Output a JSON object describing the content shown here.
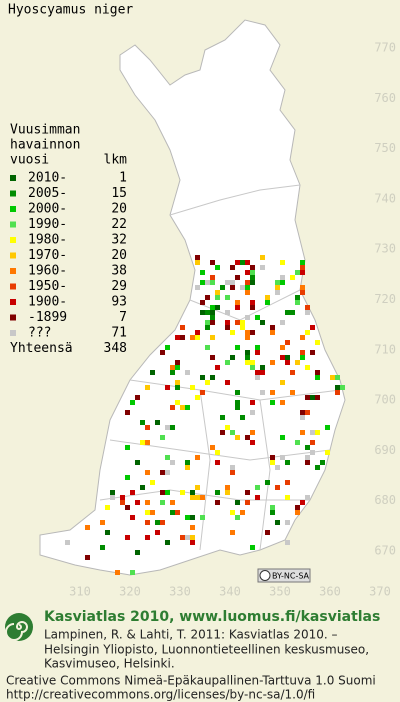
{
  "title": "Hyoscyamus niger",
  "legend": {
    "heading": [
      "Vuusimman",
      "havainnon"
    ],
    "year_label": "vuosi",
    "count_label": "lkm",
    "rows": [
      {
        "label": "2010-",
        "count": 1,
        "color": "#006400"
      },
      {
        "label": "2005-",
        "count": 15,
        "color": "#008c00"
      },
      {
        "label": "2000-",
        "count": 20,
        "color": "#00c800"
      },
      {
        "label": "1990-",
        "count": 22,
        "color": "#50e050"
      },
      {
        "label": "1980-",
        "count": 32,
        "color": "#ffff00"
      },
      {
        "label": "1970-",
        "count": 20,
        "color": "#ffc800"
      },
      {
        "label": "1960-",
        "count": 38,
        "color": "#ff7800"
      },
      {
        "label": "1950-",
        "count": 29,
        "color": "#e83c00"
      },
      {
        "label": "1900-",
        "count": 93,
        "color": "#c80000"
      },
      {
        "label": "-1899",
        "count": 7,
        "color": "#800000"
      },
      {
        "label": "???",
        "count": 71,
        "color": "#c8c8c8"
      }
    ],
    "total_label": "Yhteensä",
    "total": 348
  },
  "grid_y": [
    770,
    760,
    750,
    740,
    730,
    720,
    710,
    700,
    690,
    680,
    670
  ],
  "grid_x": [
    310,
    320,
    330,
    340,
    350,
    360,
    370
  ],
  "license_badge": "BY-NC-SA",
  "footer": {
    "headline": "Kasviatlas 2010, www.luomus.fi/kasviatlas",
    "citation": [
      "Lampinen, R. & Lahti, T. 2011: Kasviatlas 2010. –",
      "Helsingin Yliopisto, Luonnontieteellinen keskusmuseo,",
      "Kasvimuseo, Helsinki."
    ],
    "license": [
      "Creative Commons Nimeä-Epäkaupallinen-Tarttuva 1.0 Suomi",
      "http://creativecommons.org/licenses/by-nc-sa/1.0/fi"
    ]
  }
}
